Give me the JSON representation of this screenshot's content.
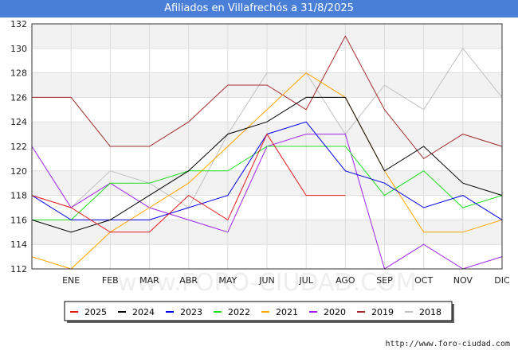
{
  "chart_data": {
    "type": "line",
    "title": "Afiliados en Villafrechós a 31/8/2025",
    "categories": [
      "",
      "ENE",
      "FEB",
      "MAR",
      "ABR",
      "MAY",
      "JUN",
      "JUL",
      "AGO",
      "SEP",
      "OCT",
      "NOV",
      "DIC"
    ],
    "ylim": [
      112,
      132
    ],
    "yticks": [
      112,
      114,
      116,
      118,
      120,
      122,
      124,
      126,
      128,
      130,
      132
    ],
    "grid": true,
    "legend_position": "bottom",
    "watermark": "www.FORO-CIUDAD.COM",
    "series": [
      {
        "name": "2025",
        "color": "#e31a1c",
        "values": [
          118,
          117,
          115,
          115,
          118,
          116,
          123,
          118,
          118,
          null,
          null,
          null,
          null
        ]
      },
      {
        "name": "2024",
        "color": "#000000",
        "values": [
          116,
          115,
          116,
          118,
          120,
          123,
          124,
          126,
          126,
          120,
          122,
          119,
          118
        ]
      },
      {
        "name": "2023",
        "color": "#0000ee",
        "values": [
          118,
          116,
          116,
          116,
          117,
          118,
          123,
          124,
          120,
          119,
          117,
          118,
          116
        ]
      },
      {
        "name": "2022",
        "color": "#22dd22",
        "values": [
          116,
          116,
          119,
          119,
          120,
          120,
          122,
          122,
          122,
          118,
          120,
          117,
          118
        ]
      },
      {
        "name": "2021",
        "color": "#ffa500",
        "values": [
          113,
          112,
          115,
          117,
          119,
          122,
          125,
          128,
          126,
          120,
          115,
          115,
          116
        ]
      },
      {
        "name": "2020",
        "color": "#a020f0",
        "values": [
          122,
          117,
          119,
          117,
          116,
          115,
          122,
          123,
          123,
          112,
          114,
          112,
          113
        ]
      },
      {
        "name": "2019",
        "color": "#a52a2a",
        "values": [
          126,
          126,
          122,
          122,
          124,
          127,
          127,
          125,
          131,
          125,
          121,
          123,
          122
        ]
      },
      {
        "name": "2018",
        "color": "#c0c0c0",
        "values": [
          118,
          117,
          120,
          119,
          117,
          123,
          128,
          128,
          123,
          127,
          125,
          130,
          126
        ]
      }
    ]
  },
  "credit": "http://www.foro-ciudad.com"
}
